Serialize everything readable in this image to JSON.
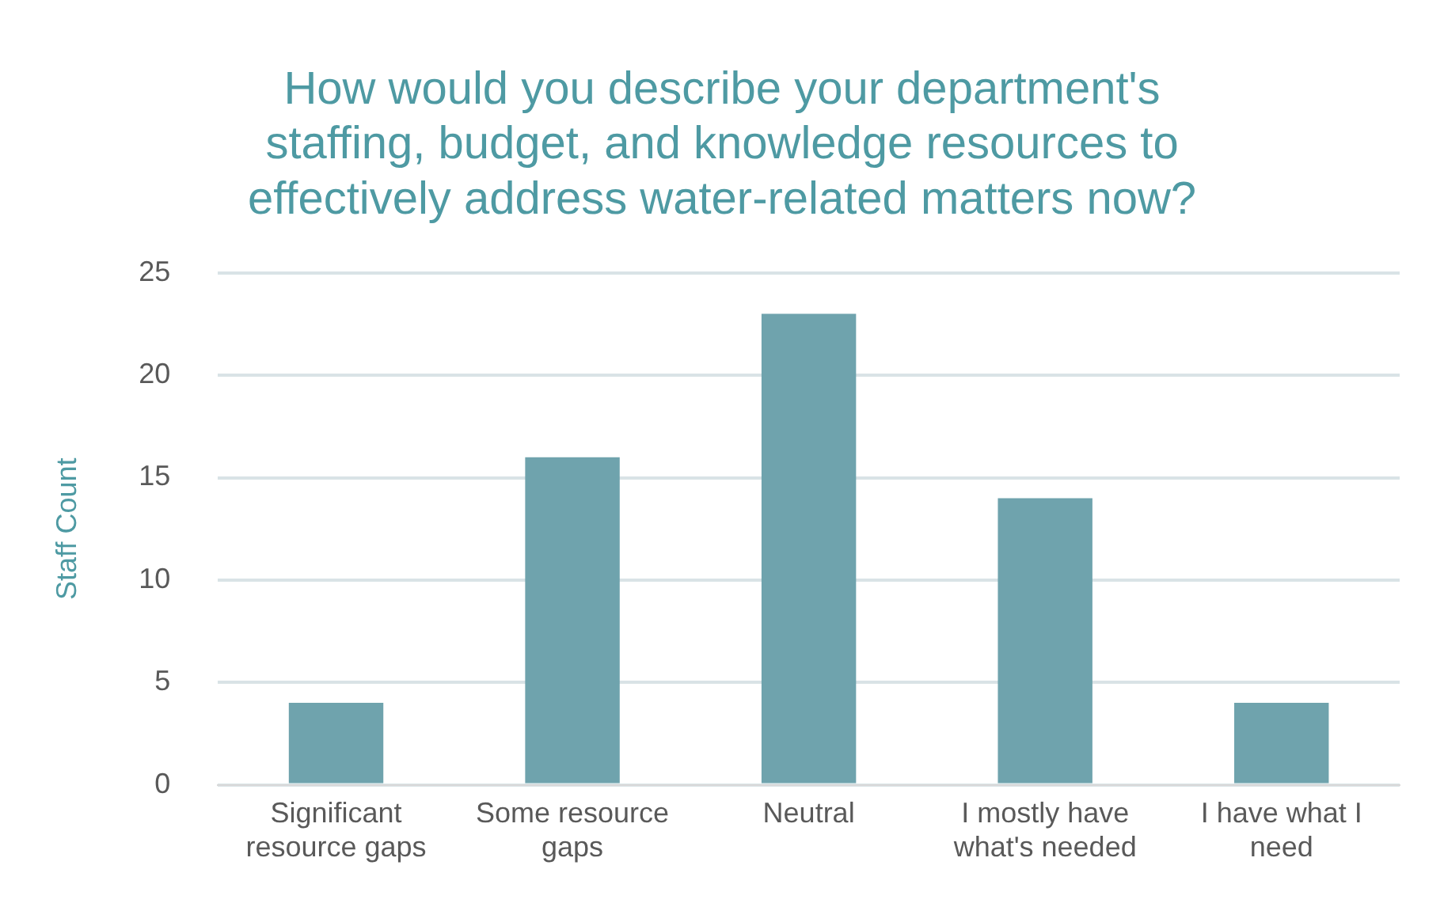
{
  "chart_data": {
    "type": "bar",
    "title": "How would you describe your department's staffing, budget, and knowledge resources to effectively address water-related matters now?",
    "ylabel": "Staff Count",
    "categories": [
      "Significant resource gaps",
      "Some resource gaps",
      "Neutral",
      "I mostly have what's needed",
      "I have what I need"
    ],
    "values": [
      4,
      16,
      23,
      14,
      4
    ],
    "color": "#6fa3ad",
    "ylim": [
      0,
      25
    ],
    "yticks": [
      0,
      5,
      10,
      15,
      20,
      25
    ],
    "grid": "y"
  }
}
